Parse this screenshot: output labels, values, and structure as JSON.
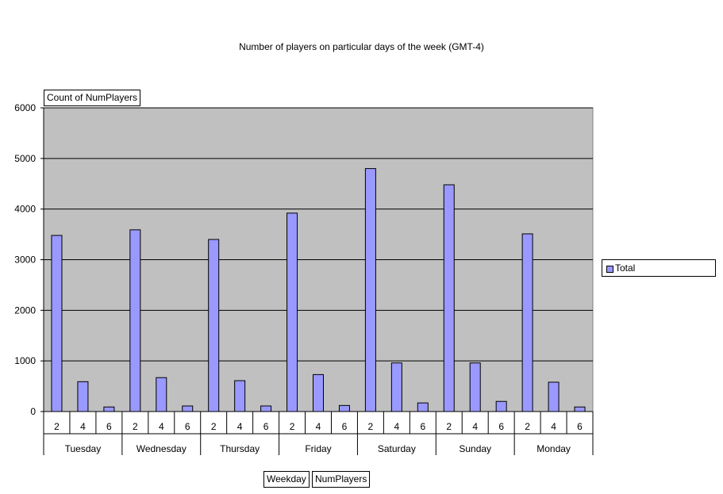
{
  "title": "Number of players on particular days of the week (GMT-4)",
  "pivot": {
    "data_field": "Count of NumPlayers",
    "row_field_1": "Weekday",
    "row_field_2": "NumPlayers"
  },
  "legend": {
    "label": "Total"
  },
  "colors": {
    "plot_bg": "#c0c0c0",
    "bar": "#9999ff",
    "bar_border": "#000000"
  },
  "chart_data": {
    "type": "bar",
    "title": "Number of players on particular days of the week (GMT-4)",
    "ylim": [
      0,
      6000
    ],
    "yticks": [
      0,
      1000,
      2000,
      3000,
      4000,
      5000,
      6000
    ],
    "grid": true,
    "legend_position": "right",
    "groups": [
      "Tuesday",
      "Wednesday",
      "Thursday",
      "Friday",
      "Saturday",
      "Sunday",
      "Monday"
    ],
    "subcategories": [
      "2",
      "4",
      "6"
    ],
    "series": [
      {
        "name": "Total",
        "values": [
          [
            3480,
            590,
            90
          ],
          [
            3590,
            670,
            110
          ],
          [
            3400,
            610,
            110
          ],
          [
            3920,
            730,
            120
          ],
          [
            4800,
            960,
            170
          ],
          [
            4480,
            960,
            200
          ],
          [
            3510,
            580,
            90
          ]
        ]
      }
    ]
  }
}
